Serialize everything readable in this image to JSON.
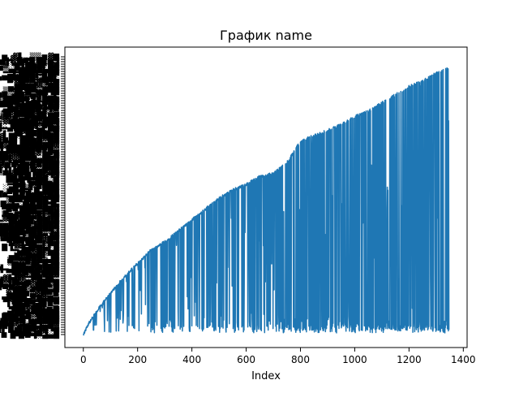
{
  "chart_data": {
    "type": "line",
    "title": "График name",
    "xlabel": "Index",
    "ylabel": "",
    "xlim": [
      -68,
      1414
    ],
    "ylim": [
      0,
      1
    ],
    "xticks": [
      0,
      200,
      400,
      600,
      800,
      1000,
      1200,
      1400
    ],
    "n_points": 1348,
    "y_tick_labels": "dense overlapping categorical labels (illegible)",
    "line_color": "#1f77b4",
    "grid": false,
    "legend": "none",
    "series": [
      {
        "upper_envelope_x": [
          0,
          20,
          60,
          100,
          150,
          200,
          250,
          300,
          350,
          400,
          450,
          500,
          550,
          600,
          650,
          700,
          750,
          800,
          850,
          900,
          950,
          1000,
          1050,
          1100,
          1150,
          1200,
          1250,
          1300,
          1348
        ],
        "upper_envelope_y": [
          0.0,
          0.04,
          0.1,
          0.15,
          0.21,
          0.26,
          0.31,
          0.34,
          0.38,
          0.42,
          0.46,
          0.5,
          0.53,
          0.55,
          0.58,
          0.59,
          0.63,
          0.71,
          0.73,
          0.75,
          0.77,
          0.8,
          0.82,
          0.85,
          0.88,
          0.91,
          0.93,
          0.96,
          0.98
        ],
        "lower_band_y": [
          0.0,
          0.03
        ]
      }
    ]
  }
}
